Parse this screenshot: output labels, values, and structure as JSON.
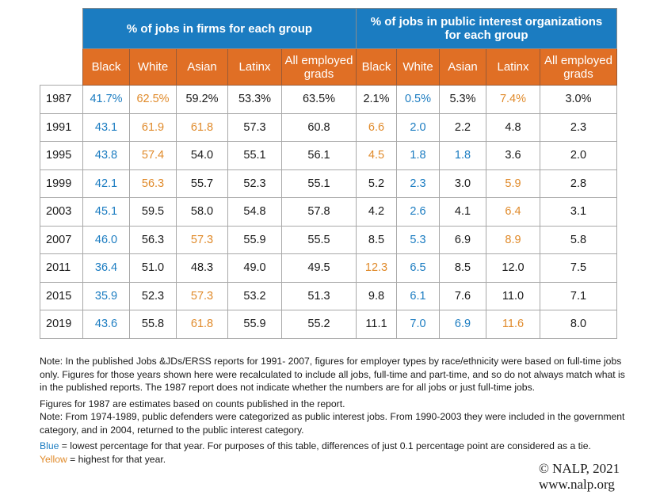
{
  "table": {
    "groups": [
      {
        "label": "% of jobs in firms for each group"
      },
      {
        "label": "% of jobs in public interest organizations for each group",
        "line1": "% of jobs in public interest organizations",
        "line2": "for each group"
      }
    ],
    "subheaders": [
      "Black",
      "White",
      "Asian",
      "Latinx",
      "All employed grads"
    ],
    "subheader_lines": {
      "all_line1": "All employed",
      "all_line2": "grads"
    },
    "rows": [
      {
        "year": "1987",
        "firms": [
          {
            "v": "41.7%",
            "h": "low"
          },
          {
            "v": "62.5%",
            "h": "high"
          },
          {
            "v": "59.2%",
            "h": ""
          },
          {
            "v": "53.3%",
            "h": ""
          },
          {
            "v": "63.5%",
            "h": ""
          }
        ],
        "pi": [
          {
            "v": "2.1%",
            "h": ""
          },
          {
            "v": "0.5%",
            "h": "low"
          },
          {
            "v": "5.3%",
            "h": ""
          },
          {
            "v": "7.4%",
            "h": "high"
          },
          {
            "v": "3.0%",
            "h": ""
          }
        ]
      },
      {
        "year": "1991",
        "firms": [
          {
            "v": "43.1",
            "h": "low"
          },
          {
            "v": "61.9",
            "h": "high"
          },
          {
            "v": "61.8",
            "h": "high"
          },
          {
            "v": "57.3",
            "h": ""
          },
          {
            "v": "60.8",
            "h": ""
          }
        ],
        "pi": [
          {
            "v": "6.6",
            "h": "high"
          },
          {
            "v": "2.0",
            "h": "low"
          },
          {
            "v": "2.2",
            "h": ""
          },
          {
            "v": "4.8",
            "h": ""
          },
          {
            "v": "2.3",
            "h": ""
          }
        ]
      },
      {
        "year": "1995",
        "firms": [
          {
            "v": "43.8",
            "h": "low"
          },
          {
            "v": "57.4",
            "h": "high"
          },
          {
            "v": "54.0",
            "h": ""
          },
          {
            "v": "55.1",
            "h": ""
          },
          {
            "v": "56.1",
            "h": ""
          }
        ],
        "pi": [
          {
            "v": "4.5",
            "h": "high"
          },
          {
            "v": "1.8",
            "h": "low"
          },
          {
            "v": "1.8",
            "h": "low"
          },
          {
            "v": "3.6",
            "h": ""
          },
          {
            "v": "2.0",
            "h": ""
          }
        ]
      },
      {
        "year": "1999",
        "firms": [
          {
            "v": "42.1",
            "h": "low"
          },
          {
            "v": "56.3",
            "h": "high"
          },
          {
            "v": "55.7",
            "h": ""
          },
          {
            "v": "52.3",
            "h": ""
          },
          {
            "v": "55.1",
            "h": ""
          }
        ],
        "pi": [
          {
            "v": "5.2",
            "h": ""
          },
          {
            "v": "2.3",
            "h": "low"
          },
          {
            "v": "3.0",
            "h": ""
          },
          {
            "v": "5.9",
            "h": "high"
          },
          {
            "v": "2.8",
            "h": ""
          }
        ]
      },
      {
        "year": "2003",
        "firms": [
          {
            "v": "45.1",
            "h": "low"
          },
          {
            "v": "59.5",
            "h": ""
          },
          {
            "v": "58.0",
            "h": ""
          },
          {
            "v": "54.8",
            "h": ""
          },
          {
            "v": "57.8",
            "h": ""
          }
        ],
        "pi": [
          {
            "v": "4.2",
            "h": ""
          },
          {
            "v": "2.6",
            "h": "low"
          },
          {
            "v": "4.1",
            "h": ""
          },
          {
            "v": "6.4",
            "h": "high"
          },
          {
            "v": "3.1",
            "h": ""
          }
        ]
      },
      {
        "year": "2007",
        "firms": [
          {
            "v": "46.0",
            "h": "low"
          },
          {
            "v": "56.3",
            "h": ""
          },
          {
            "v": "57.3",
            "h": "high"
          },
          {
            "v": "55.9",
            "h": ""
          },
          {
            "v": "55.5",
            "h": ""
          }
        ],
        "pi": [
          {
            "v": "8.5",
            "h": ""
          },
          {
            "v": "5.3",
            "h": "low"
          },
          {
            "v": "6.9",
            "h": ""
          },
          {
            "v": "8.9",
            "h": "high"
          },
          {
            "v": "5.8",
            "h": ""
          }
        ]
      },
      {
        "year": "2011",
        "firms": [
          {
            "v": "36.4",
            "h": "low"
          },
          {
            "v": "51.0",
            "h": ""
          },
          {
            "v": "48.3",
            "h": ""
          },
          {
            "v": "49.0",
            "h": ""
          },
          {
            "v": "49.5",
            "h": ""
          }
        ],
        "pi": [
          {
            "v": "12.3",
            "h": "high"
          },
          {
            "v": "6.5",
            "h": "low"
          },
          {
            "v": "8.5",
            "h": ""
          },
          {
            "v": "12.0",
            "h": ""
          },
          {
            "v": "7.5",
            "h": ""
          }
        ]
      },
      {
        "year": "2015",
        "firms": [
          {
            "v": "35.9",
            "h": "low"
          },
          {
            "v": "52.3",
            "h": ""
          },
          {
            "v": "57.3",
            "h": "high"
          },
          {
            "v": "53.2",
            "h": ""
          },
          {
            "v": "51.3",
            "h": ""
          }
        ],
        "pi": [
          {
            "v": "9.8",
            "h": ""
          },
          {
            "v": "6.1",
            "h": "low"
          },
          {
            "v": "7.6",
            "h": ""
          },
          {
            "v": "11.0",
            "h": ""
          },
          {
            "v": "7.1",
            "h": ""
          }
        ]
      },
      {
        "year": "2019",
        "firms": [
          {
            "v": "43.6",
            "h": "low"
          },
          {
            "v": "55.8",
            "h": ""
          },
          {
            "v": "61.8",
            "h": "high"
          },
          {
            "v": "55.9",
            "h": ""
          },
          {
            "v": "55.2",
            "h": ""
          }
        ],
        "pi": [
          {
            "v": "11.1",
            "h": ""
          },
          {
            "v": "7.0",
            "h": "low"
          },
          {
            "v": "6.9",
            "h": "low"
          },
          {
            "v": "11.6",
            "h": "high"
          },
          {
            "v": "8.0",
            "h": ""
          }
        ]
      }
    ]
  },
  "notes": {
    "note1": "Note: In the published Jobs &JDs/ERSS reports for 1991- 2007, figures for employer types by race/ethnicity were based on full-time jobs only. Figures for those years shown here were recalculated to include all jobs, full-time and part-time, and so do not always match what is in the published reports. The 1987 report does not indicate whether the numbers are for all jobs or just full-time jobs.",
    "note2": "Figures for 1987 are estimates based on counts published in the report.",
    "note3": "Note: From 1974-1989, public defenders were categorized as public interest jobs. From 1990-2003 they were included in the government category, and in 2004, returned to the public interest category.",
    "legend_blue_word": "Blue",
    "legend_blue_text": " = lowest percentage for that year. For purposes of this table, differences of just 0.1 percentage point are considered as a tie.",
    "legend_yellow_word": "Yellow",
    "legend_yellow_text": " = highest for that year."
  },
  "credit": {
    "copyright": "© NALP, 2021",
    "website": "www.nalp.org"
  },
  "colors": {
    "header_blue": "#1b7cc1",
    "header_orange": "#e06f25",
    "lowest_blue": "#1b7cc1",
    "highest_yellow": "#e08a2a"
  }
}
